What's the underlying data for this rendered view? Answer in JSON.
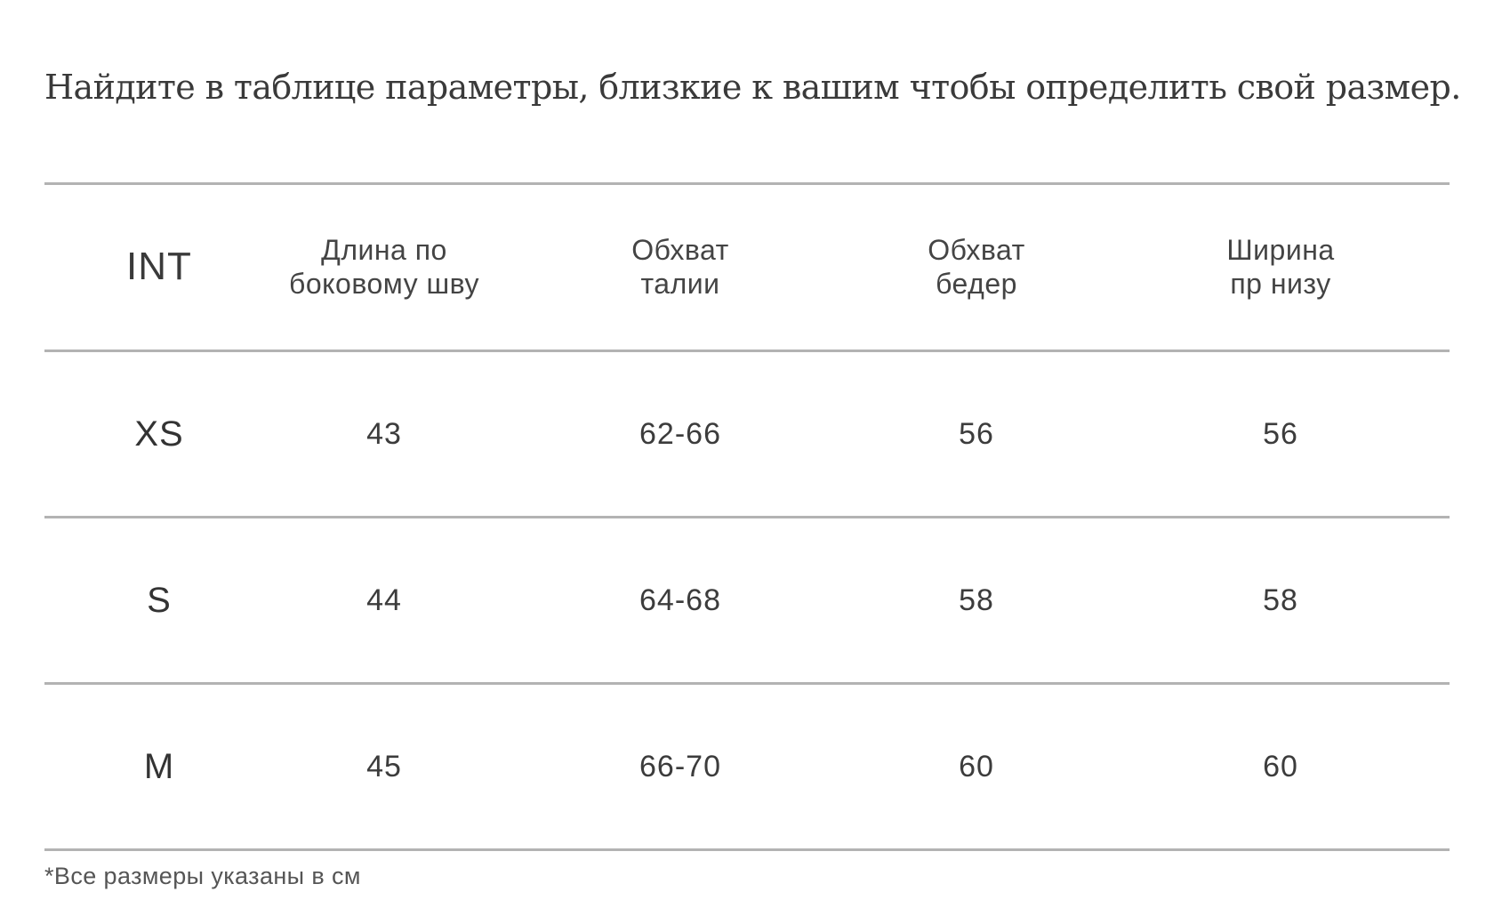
{
  "intro": "Найдите в таблице параметры, близкие к вашим чтобы определить свой размер.",
  "table": {
    "headers": [
      "INT",
      "Длина по\nбоковому шву",
      "Обхват\nталии",
      "Обхват\nбедер",
      "Ширина\nпр низу"
    ],
    "rows": [
      {
        "size": "XS",
        "length": "43",
        "waist": "62-66",
        "hips": "56",
        "hem": "56"
      },
      {
        "size": "S",
        "length": "44",
        "waist": "64-68",
        "hips": "58",
        "hem": "58"
      },
      {
        "size": "M",
        "length": "45",
        "waist": "66-70",
        "hips": "60",
        "hem": "60"
      }
    ]
  },
  "footnote": "*Все размеры указаны в см"
}
